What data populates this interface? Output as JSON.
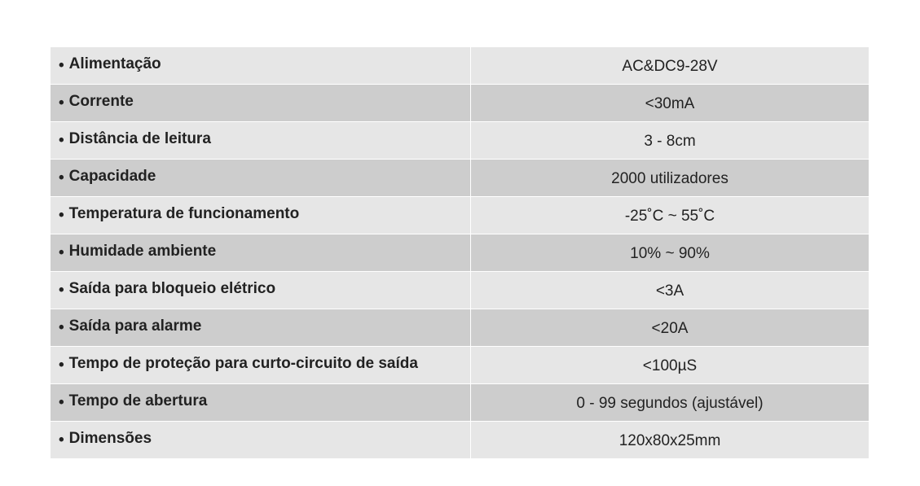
{
  "specs": {
    "bullet": "•",
    "rows": [
      {
        "label": "Alimentação",
        "value": "AC&DC9-28V"
      },
      {
        "label": "Corrente",
        "value": "<30mA"
      },
      {
        "label": "Distância de leitura",
        "value": "3 - 8cm"
      },
      {
        "label": "Capacidade",
        "value": "2000 utilizadores"
      },
      {
        "label": "Temperatura de funcionamento",
        "value": "-25˚C ~ 55˚C"
      },
      {
        "label": "Humidade ambiente",
        "value": "10% ~ 90%"
      },
      {
        "label": "Saída para bloqueio elétrico",
        "value": "<3A"
      },
      {
        "label": "Saída para alarme",
        "value": "<20A"
      },
      {
        "label": "Tempo de proteção para curto-circuito de saída",
        "value": "<100µS"
      },
      {
        "label": "Tempo de abertura",
        "value": "0 - 99 segundos (ajustável)"
      },
      {
        "label": "Dimensões",
        "value": "120x80x25mm"
      }
    ],
    "colors": {
      "row_light": "#e6e6e6",
      "row_dark": "#cdcdcd",
      "text": "#222222"
    }
  }
}
